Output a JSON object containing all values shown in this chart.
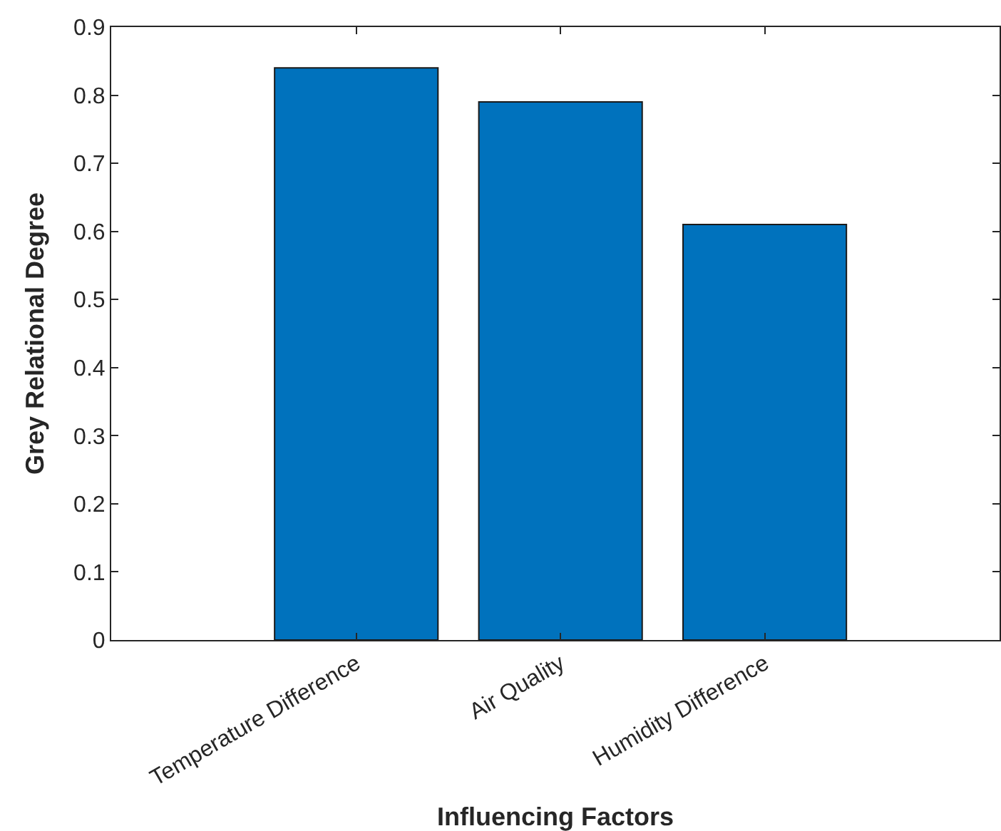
{
  "chart_data": {
    "type": "bar",
    "xlabel": "Influencing Factors",
    "ylabel": "Grey Relational Degree",
    "categories": [
      "Temperature Difference",
      "Air Quality",
      "Humidity Difference"
    ],
    "values": [
      0.84,
      0.79,
      0.61
    ],
    "color": "#0072bd",
    "ylim": [
      0,
      0.9
    ],
    "yticks": [
      0,
      0.1,
      0.2,
      0.3,
      0.4,
      0.5,
      0.6,
      0.7,
      0.8,
      0.9
    ]
  }
}
